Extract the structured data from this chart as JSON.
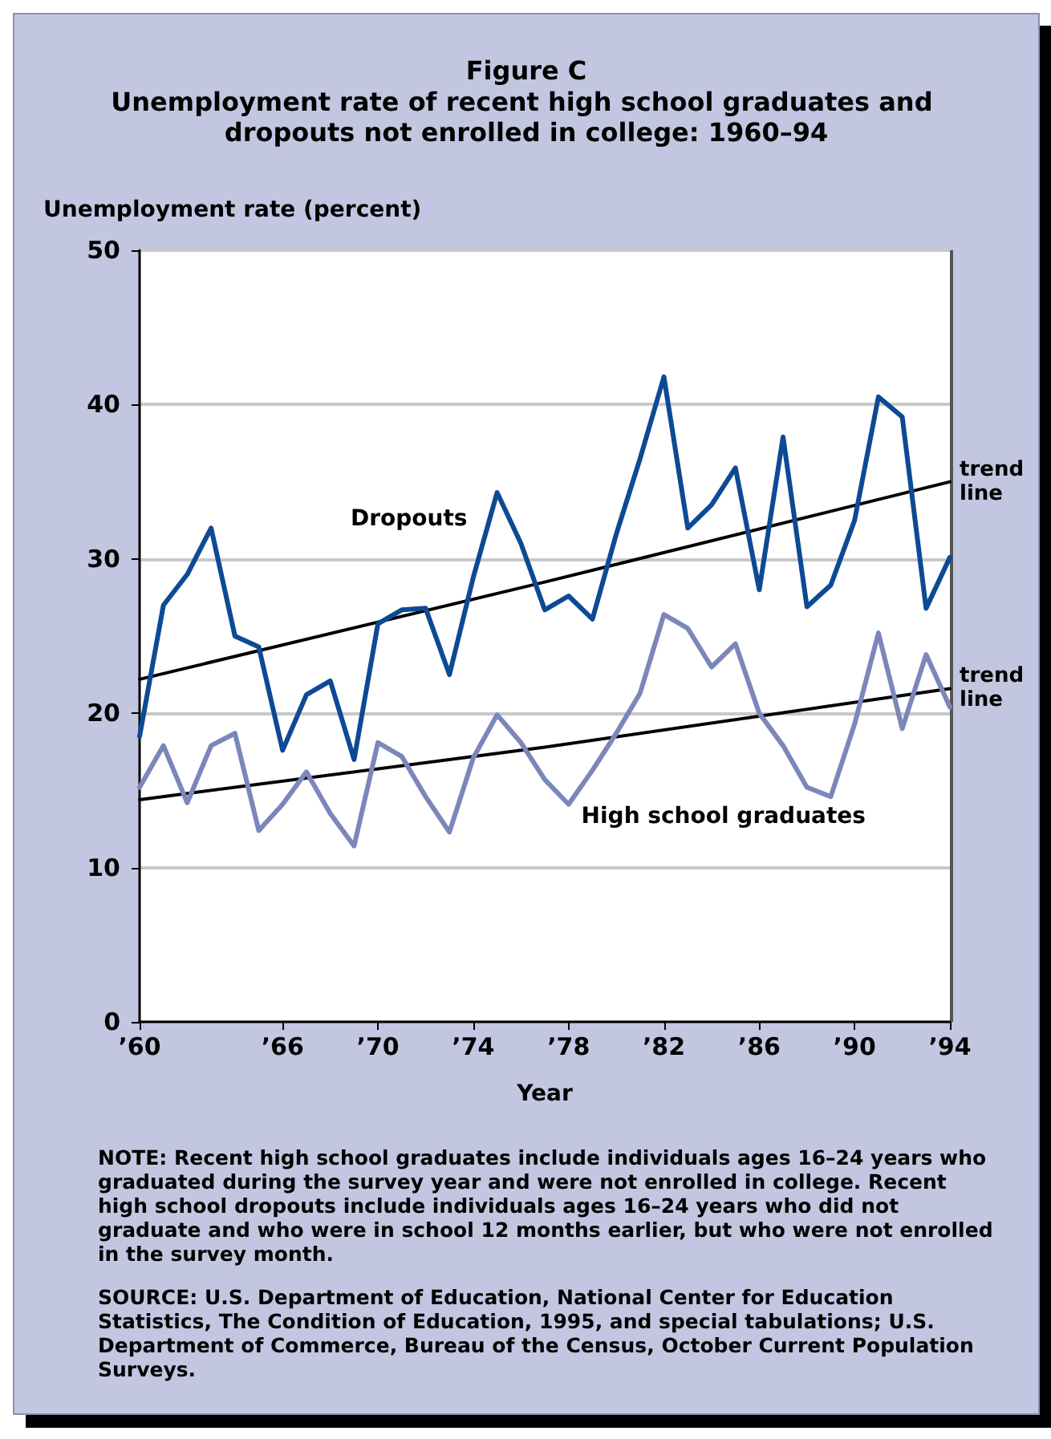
{
  "chart_data": {
    "type": "line",
    "title": "Figure C",
    "subtitle": "Unemployment rate of recent high school graduates and dropouts not enrolled in college: 1960–94",
    "xlabel": "Year",
    "ylabel": "Unemployment rate (percent)",
    "x": [
      1960,
      1961,
      1962,
      1963,
      1964,
      1965,
      1966,
      1967,
      1968,
      1969,
      1970,
      1971,
      1972,
      1973,
      1974,
      1975,
      1976,
      1977,
      1978,
      1979,
      1980,
      1981,
      1982,
      1983,
      1984,
      1985,
      1986,
      1987,
      1988,
      1989,
      1990,
      1991,
      1992,
      1993,
      1994
    ],
    "series": [
      {
        "name": "Dropouts",
        "color": "#0d4a94",
        "values": [
          18.5,
          27,
          29,
          32,
          25,
          24.3,
          17.6,
          21.2,
          22.1,
          17,
          25.8,
          26.7,
          26.8,
          22.5,
          28.8,
          34.3,
          31,
          26.7,
          27.6,
          26.1,
          31.6,
          36.5,
          41.8,
          32,
          33.5,
          35.9,
          28,
          37.9,
          26.9,
          28.3,
          32.5,
          40.5,
          39.2,
          26.8,
          30.1
        ]
      },
      {
        "name": "High school graduates",
        "color": "#7b87bb",
        "values": [
          15.2,
          17.9,
          14.2,
          17.9,
          18.7,
          12.4,
          14.1,
          16.2,
          13.5,
          11.4,
          18.1,
          17.2,
          14.6,
          12.3,
          17.1,
          19.9,
          18.1,
          15.7,
          14.1,
          16.3,
          18.7,
          21.3,
          26.4,
          25.5,
          23,
          24.5,
          20,
          17.9,
          15.2,
          14.6,
          19.3,
          25.2,
          19,
          23.8,
          20.4
        ]
      },
      {
        "name": "trend line",
        "type": "line",
        "color": "#000000",
        "x": [
          1960,
          1977,
          1994
        ],
        "values": [
          22.2,
          28.5,
          35
        ]
      },
      {
        "name": "trend line",
        "type": "line",
        "color": "#000000",
        "x": [
          1960,
          1977,
          1994
        ],
        "values": [
          14.4,
          17.8,
          21.6
        ]
      }
    ],
    "xlim": [
      1960,
      1994
    ],
    "xticks": [
      {
        "value": 1960,
        "label": "’60"
      },
      {
        "value": 1966,
        "label": "’66"
      },
      {
        "value": 1970,
        "label": "’70"
      },
      {
        "value": 1974,
        "label": "’74"
      },
      {
        "value": 1978,
        "label": "’78"
      },
      {
        "value": 1982,
        "label": "’82"
      },
      {
        "value": 1986,
        "label": "’86"
      },
      {
        "value": 1990,
        "label": "’90"
      },
      {
        "value": 1994,
        "label": "’94"
      }
    ],
    "ylim": [
      0,
      50
    ],
    "yticks": [
      0,
      10,
      20,
      30,
      40,
      50
    ],
    "grid": "y",
    "legend": false,
    "marker": "none",
    "line_style": "solid",
    "annotations": [
      "NOTE: Recent high school graduates include individuals ages 16–24 years who graduated during the survey year and were not enrolled in college. Recent high school dropouts include individuals ages 16–24 years who did not graduate and who were in school 12 months earlier, but who were not enrolled in the survey month.",
      "SOURCE: U.S. Department of Education, National Center for Education Statistics, The Condition of Education, 1995, and special tabulations; U.S. Department of Commerce, Bureau of the Census, October Current Population Surveys."
    ]
  }
}
